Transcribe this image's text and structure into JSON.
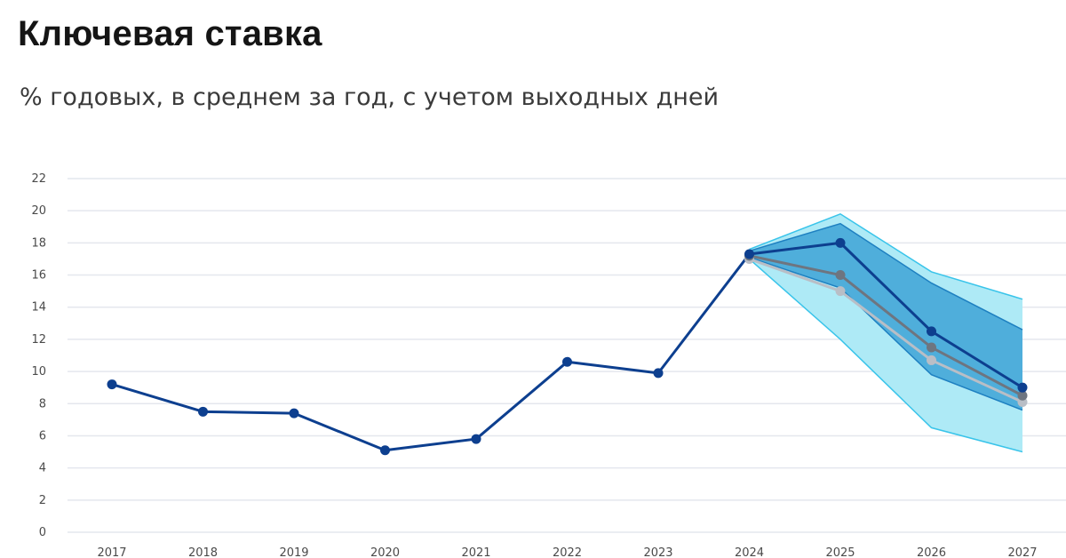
{
  "chart_data": {
    "type": "line",
    "title": "Ключевая ставка",
    "subtitle": "% годовых, в среднем за год, с учетом выходных дней",
    "x": [
      "2017",
      "2018",
      "2019",
      "2020",
      "2021",
      "2022",
      "2023",
      "2024",
      "2025",
      "2026",
      "2027"
    ],
    "y_ticks": [
      "0",
      "2",
      "4",
      "6",
      "8",
      "10",
      "12",
      "14",
      "16",
      "18",
      "20",
      "22"
    ],
    "ylim": [
      0,
      22
    ],
    "grid": true,
    "series": [
      {
        "values": [
          9.2,
          7.5,
          7.4,
          5.1,
          5.8,
          10.6,
          9.9,
          17.3,
          18.0,
          12.5,
          9.0
        ],
        "color": "#0d3f8f"
      },
      {
        "values": [
          null,
          null,
          null,
          null,
          null,
          null,
          null,
          17.2,
          16.0,
          11.5,
          8.5
        ],
        "color": "#6e7580"
      },
      {
        "values": [
          null,
          null,
          null,
          null,
          null,
          null,
          null,
          17.0,
          15.0,
          10.7,
          8.1
        ],
        "color": "#b9bec6"
      }
    ],
    "bands": [
      {
        "x_start": "2024",
        "lower": [
          17.0,
          12.0,
          6.5,
          5.0
        ],
        "upper": [
          17.6,
          19.8,
          16.2,
          14.5
        ],
        "color": "#aeeaf6",
        "edge": "#39c4ea"
      },
      {
        "x_start": "2024",
        "lower": [
          17.1,
          15.2,
          9.8,
          7.6
        ],
        "upper": [
          17.5,
          19.2,
          15.5,
          12.6
        ],
        "color": "#4faedb",
        "edge": "#1e80c1"
      }
    ]
  }
}
